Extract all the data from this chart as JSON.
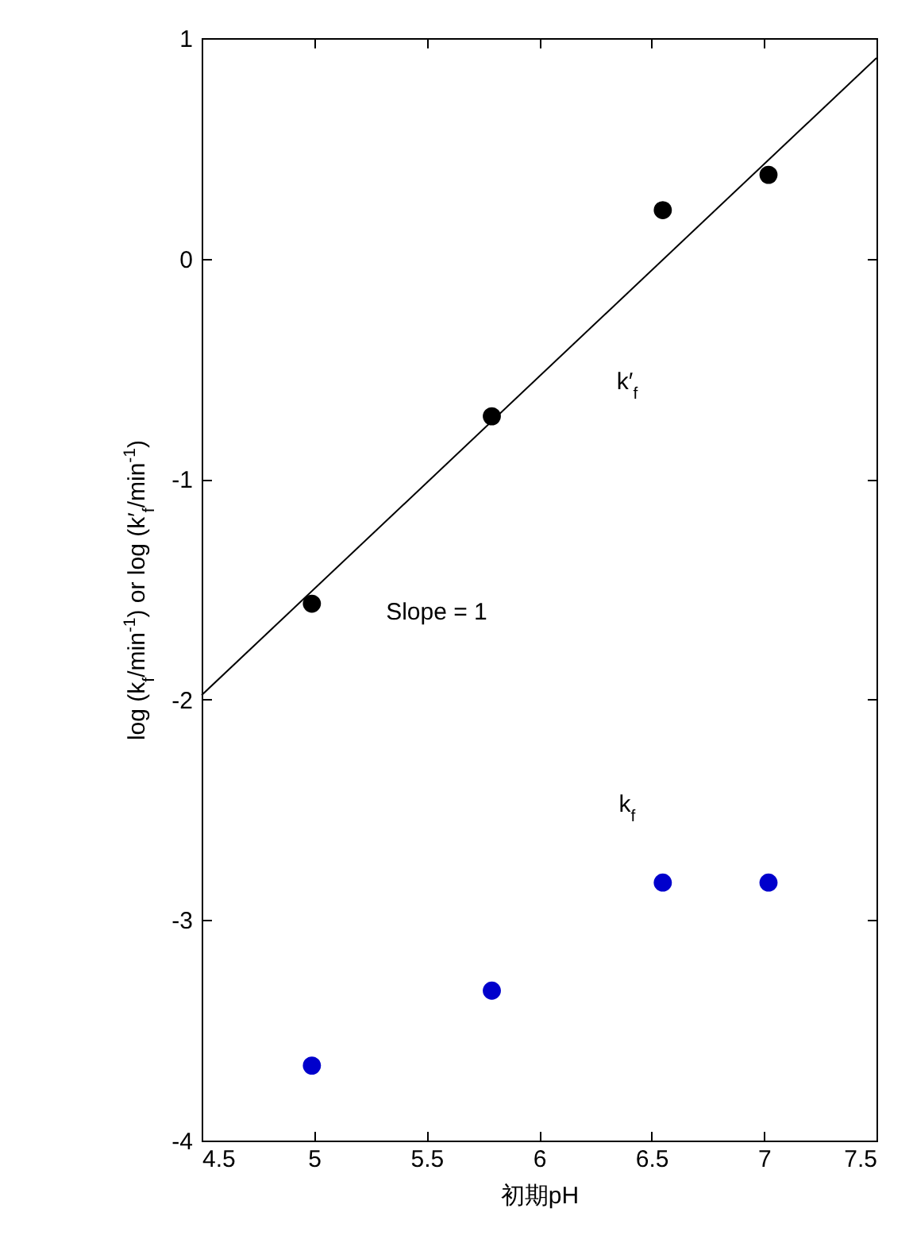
{
  "chart_data": {
    "type": "scatter",
    "xlabel": "初期pH",
    "ylabel": "log (k$_{f}$/min$^{-1}$) or log (k′$_{f}$/min$^{-1}$)",
    "x": [
      4.99,
      5.79,
      6.55,
      7.02
    ],
    "series": [
      {
        "color": "#000000",
        "values": [
          -1.565,
          -0.715,
          0.22,
          0.38
        ]
      },
      {
        "color": "#0000cc",
        "values": [
          -3.66,
          -3.32,
          -2.83,
          -2.83
        ]
      },
      {
        "type": "line",
        "marker": "none",
        "color": "#000000",
        "x": [
          4.5,
          7.5
        ],
        "values": [
          -1.98,
          0.91
        ]
      }
    ],
    "xlim": [
      4.5,
      7.5
    ],
    "xticks": [
      4.5,
      5,
      5.5,
      6,
      6.5,
      7,
      7.5
    ],
    "ylim": [
      -4,
      1
    ],
    "yticks": [
      -4,
      -3,
      -2,
      -1,
      0,
      1
    ],
    "grid": false,
    "marker": "circle",
    "annotations": [
      "k′$_{f}$",
      "k$_{f}$",
      "Slope = 1"
    ]
  }
}
